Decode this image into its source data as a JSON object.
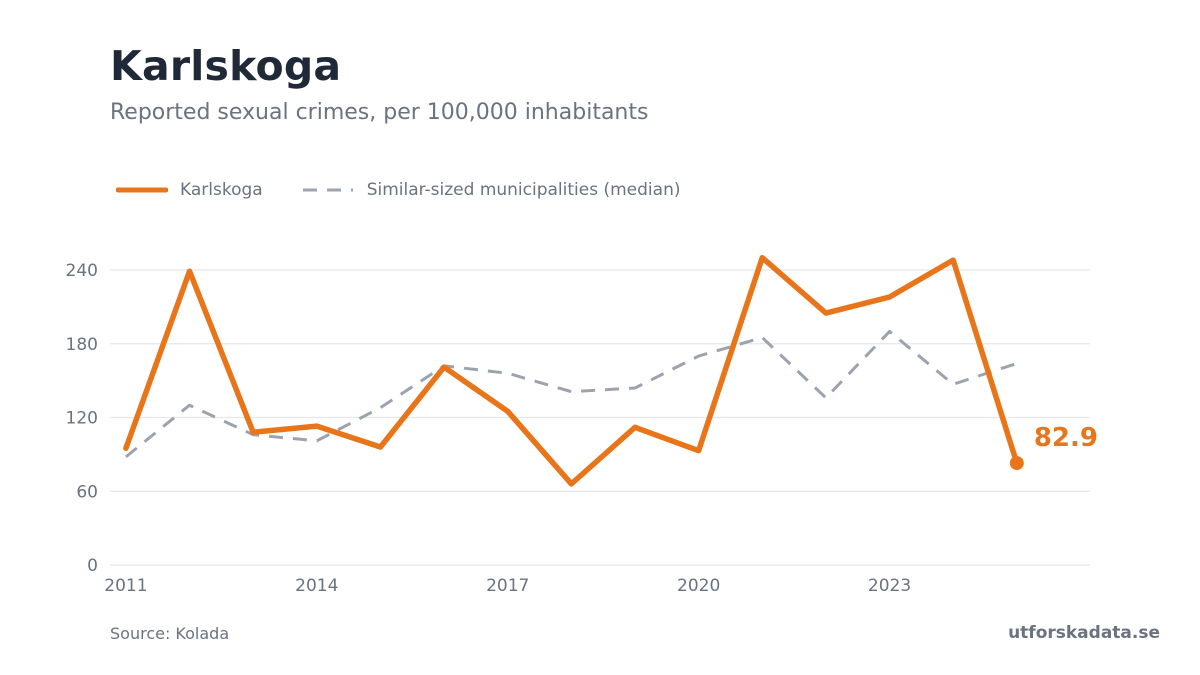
{
  "title": "Karlskoga",
  "subtitle": "Reported sexual crimes, per 100,000 inhabitants",
  "source": "Source: Kolada",
  "brand": "utforskadata.se",
  "colors": {
    "primary": "#e8751a",
    "median": "#9ca3af",
    "grid": "#e5e7eb",
    "text": "#6b7280",
    "title": "#1f2937"
  },
  "chart_data": {
    "type": "line",
    "x": [
      2011,
      2012,
      2013,
      2014,
      2015,
      2016,
      2017,
      2018,
      2019,
      2020,
      2021,
      2022,
      2023,
      2024,
      2025
    ],
    "x_ticks": [
      "2011",
      "2014",
      "2017",
      "2020",
      "2023"
    ],
    "y_ticks": [
      "0",
      "60",
      "120",
      "180",
      "240"
    ],
    "ylim": [
      0,
      240
    ],
    "grid": true,
    "legend_position": "top-left",
    "series": [
      {
        "name": "Karlskoga",
        "style": "solid",
        "values": [
          95,
          239,
          108,
          113,
          96,
          161,
          125,
          66,
          112,
          93,
          250,
          205,
          218,
          248,
          82.9
        ]
      },
      {
        "name": "Similar-sized municipalities (median)",
        "style": "dashed",
        "values": [
          88,
          130,
          106,
          101,
          128,
          162,
          156,
          141,
          144,
          170,
          185,
          136,
          190,
          147,
          164
        ]
      }
    ],
    "end_label": "82.9"
  }
}
